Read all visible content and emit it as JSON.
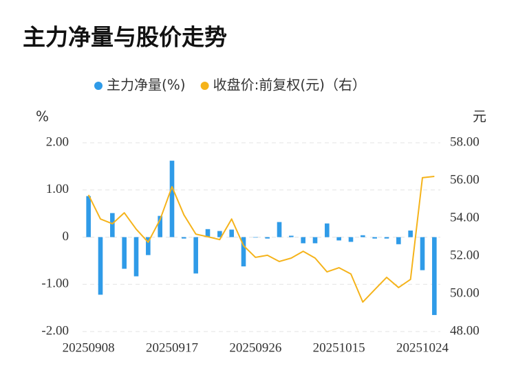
{
  "chart_data": {
    "type": "bar",
    "title": "主力净量与股价走势",
    "y_label": "%",
    "y2_label": "元",
    "categories": [
      "20250908",
      null,
      null,
      null,
      null,
      null,
      null,
      "20250917",
      null,
      null,
      null,
      null,
      null,
      null,
      "20250926",
      null,
      null,
      null,
      null,
      null,
      null,
      "20251015",
      null,
      null,
      null,
      null,
      null,
      null,
      "20251024",
      null
    ],
    "series": [
      {
        "name": "主力净量(%)",
        "type": "bar",
        "color": "#2f9be8",
        "values": [
          0.87,
          -1.22,
          0.51,
          -0.67,
          -0.83,
          -0.38,
          0.45,
          1.62,
          -0.03,
          -0.77,
          0.17,
          0.13,
          0.16,
          -0.62,
          -0.01,
          -0.03,
          0.32,
          0.03,
          -0.13,
          -0.13,
          0.29,
          -0.07,
          -0.1,
          0.04,
          -0.03,
          -0.03,
          -0.15,
          0.14,
          -0.7,
          -1.65
        ]
      },
      {
        "name": "收盘价:前复权(元)（右）",
        "type": "line",
        "axis": "y2",
        "color": "#f5b31a",
        "values": [
          55.24,
          53.96,
          53.71,
          54.29,
          53.42,
          52.73,
          53.93,
          55.67,
          54.18,
          53.16,
          53.02,
          52.87,
          53.96,
          52.55,
          51.93,
          52.04,
          51.71,
          51.89,
          52.25,
          51.89,
          51.16,
          51.38,
          51.05,
          49.56,
          50.22,
          50.87,
          50.33,
          50.76,
          56.15,
          56.22
        ]
      }
    ],
    "ylim": [
      -2,
      2
    ],
    "yticks": [
      {
        "value": 2,
        "label": "2.00"
      },
      {
        "value": 1,
        "label": "1.00"
      },
      0,
      {
        "value": -1,
        "label": "-1.00"
      },
      {
        "value": -2,
        "label": "-2.00"
      }
    ],
    "y2lim": [
      48,
      58
    ],
    "y2ticks": [
      {
        "value": 58,
        "label": "58.00"
      },
      {
        "value": 56,
        "label": "56.00"
      },
      {
        "value": 54,
        "label": "54.00"
      },
      {
        "value": 52,
        "label": "52.00"
      },
      {
        "value": 50,
        "label": "50.00"
      },
      {
        "value": 48,
        "label": "48.00"
      }
    ],
    "grid": true
  }
}
